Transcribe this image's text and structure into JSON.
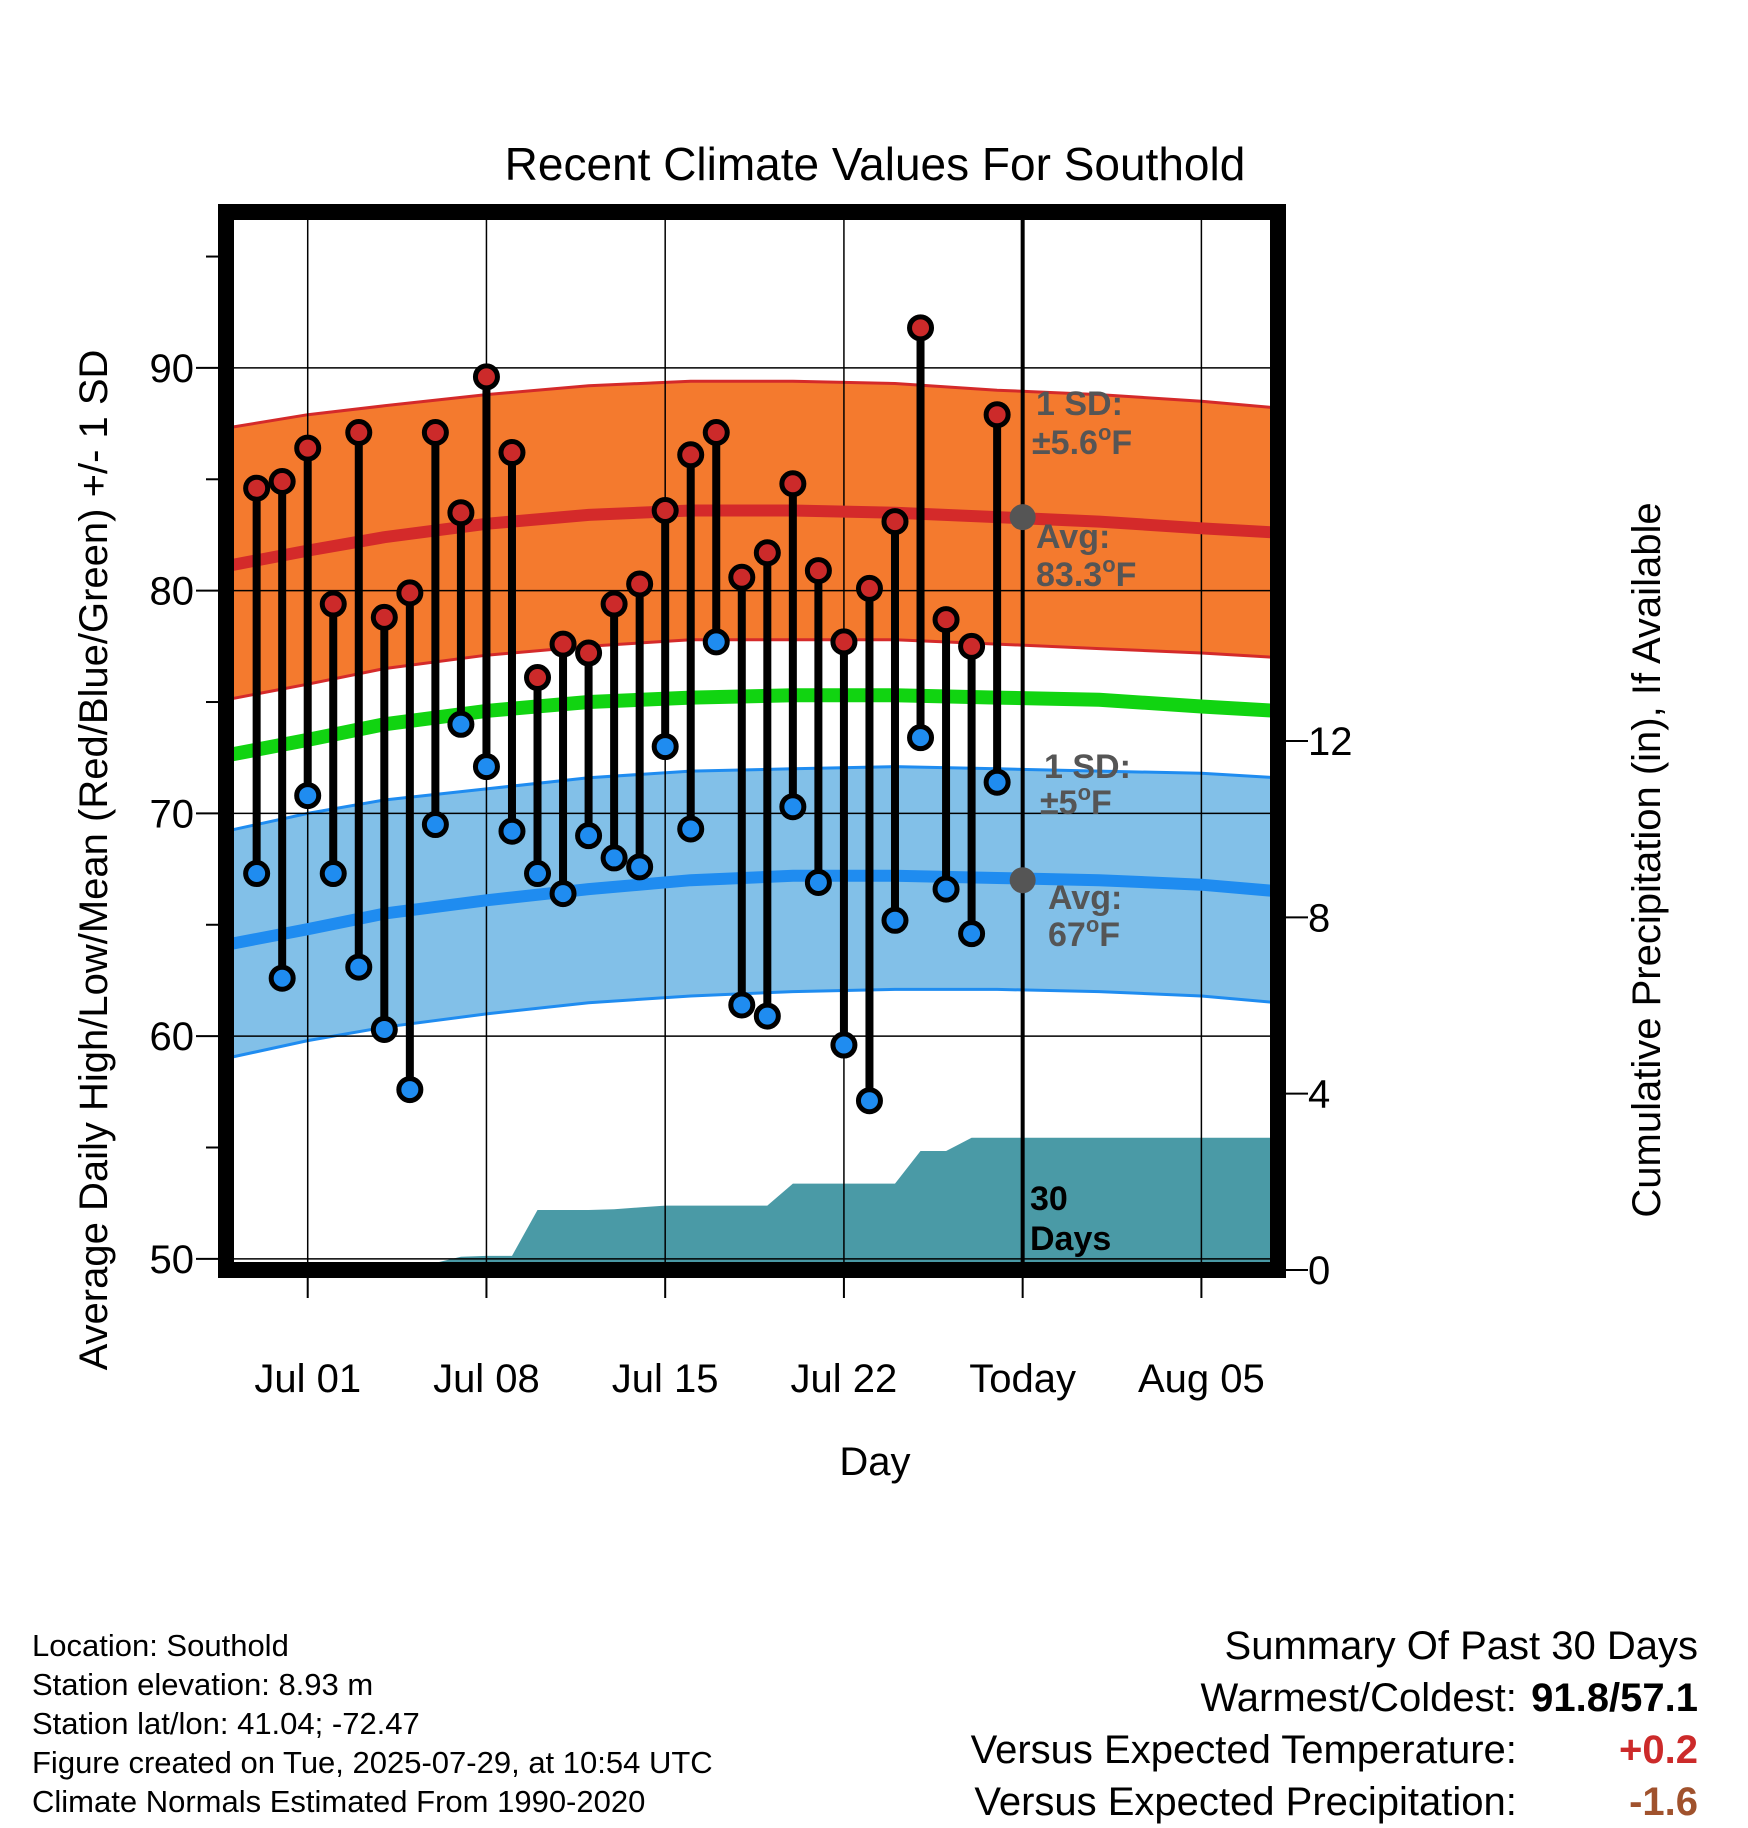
{
  "colors": {
    "high_band": "#f47a2e",
    "high_band_edge": "#d42a2a",
    "high_mean": "#d42a2a",
    "low_band": "#82c0e8",
    "low_band_edge": "#1f8cf0",
    "low_mean": "#1f8cf0",
    "daily_mean": "#11d411",
    "precip": "#4a9aa6",
    "high_dot": "#cc2a2a",
    "low_dot": "#1f8cf0",
    "today_dot": "#555555",
    "annotation": "#555555",
    "temp_anomaly": "#cc2a2a",
    "precip_anomaly": "#a0522d"
  },
  "chart_data": {
    "type": "line",
    "title": "Recent Climate Values For Southold",
    "xlabel": "Day",
    "ylabel": "Average Daily High/Low/Mean (Red/Blue/Green) +/- 1 SD",
    "y2label": "Cumulative Precipitation (in), If Available",
    "ylim": [
      49.5,
      97
    ],
    "y2lim": [
      0,
      24
    ],
    "y_ticks": [
      50,
      60,
      70,
      80,
      90
    ],
    "y2_ticks": [
      0,
      4,
      8,
      12
    ],
    "x_tick_days": [
      1,
      8,
      15,
      22,
      29,
      36
    ],
    "x_tick_labels": [
      "Jul 01",
      "Jul 08",
      "Jul 15",
      "Jul 22",
      "Today",
      "Aug 05"
    ],
    "xlim": [
      -2.2,
      39
    ],
    "today_day": 29,
    "grid": true,
    "normal_high": {
      "days": [
        -2.2,
        1,
        4,
        8,
        12,
        16,
        20,
        24,
        28,
        32,
        36,
        39
      ],
      "mean": [
        81.1,
        81.8,
        82.4,
        83.0,
        83.4,
        83.6,
        83.6,
        83.5,
        83.3,
        83.1,
        82.8,
        82.6
      ],
      "upper": [
        87.3,
        87.9,
        88.3,
        88.8,
        89.2,
        89.4,
        89.4,
        89.3,
        89.0,
        88.8,
        88.5,
        88.2
      ],
      "lower": [
        75.1,
        75.8,
        76.5,
        77.1,
        77.5,
        77.8,
        77.8,
        77.8,
        77.6,
        77.4,
        77.2,
        77.0
      ]
    },
    "normal_low": {
      "days": [
        -2.2,
        1,
        4,
        8,
        12,
        16,
        20,
        24,
        28,
        32,
        36,
        39
      ],
      "mean": [
        64.1,
        64.8,
        65.5,
        66.1,
        66.6,
        67.0,
        67.2,
        67.2,
        67.1,
        67.0,
        66.8,
        66.5
      ],
      "upper": [
        69.2,
        70.0,
        70.6,
        71.1,
        71.6,
        71.9,
        72.0,
        72.1,
        72.0,
        71.9,
        71.8,
        71.6
      ],
      "lower": [
        59.0,
        59.8,
        60.4,
        61.0,
        61.5,
        61.8,
        62.0,
        62.1,
        62.1,
        62.0,
        61.8,
        61.5
      ]
    },
    "normal_mean": {
      "days": [
        -2.2,
        1,
        4,
        8,
        12,
        16,
        20,
        24,
        28,
        32,
        36,
        39
      ],
      "values": [
        72.6,
        73.3,
        74.0,
        74.6,
        75.0,
        75.2,
        75.3,
        75.3,
        75.2,
        75.1,
        74.8,
        74.6
      ]
    },
    "series": [
      {
        "name": "Daily High",
        "days": [
          -1,
          0,
          1,
          2,
          3,
          4,
          5,
          6,
          7,
          8,
          9,
          10,
          11,
          12,
          13,
          14,
          15,
          16,
          17,
          18,
          19,
          20,
          21,
          22,
          23,
          24,
          25,
          26,
          27,
          28
        ],
        "values": [
          84.6,
          84.9,
          86.4,
          79.4,
          87.1,
          78.8,
          79.9,
          87.1,
          83.5,
          89.6,
          86.2,
          76.1,
          77.6,
          77.2,
          79.4,
          80.3,
          83.6,
          86.1,
          87.1,
          80.6,
          81.7,
          84.8,
          80.9,
          77.7,
          80.1,
          83.1,
          91.8,
          78.7,
          77.5,
          87.9
        ]
      },
      {
        "name": "Daily Low",
        "days": [
          -1,
          0,
          1,
          2,
          3,
          4,
          5,
          6,
          7,
          8,
          9,
          10,
          11,
          12,
          13,
          14,
          15,
          16,
          17,
          18,
          19,
          20,
          21,
          22,
          23,
          24,
          25,
          26,
          27,
          28
        ],
        "values": [
          67.3,
          62.6,
          70.8,
          67.3,
          63.1,
          60.3,
          57.6,
          69.5,
          74.0,
          72.1,
          69.2,
          67.3,
          66.4,
          69.0,
          68.0,
          67.6,
          73.0,
          69.3,
          77.7,
          61.4,
          60.9,
          70.3,
          66.9,
          59.6,
          57.1,
          65.2,
          73.4,
          66.6,
          64.6,
          71.4
        ]
      }
    ],
    "precip": {
      "days": [
        -2.2,
        0,
        1,
        2,
        3,
        4,
        5,
        6,
        7,
        8,
        9,
        10,
        11,
        12,
        13,
        14,
        15,
        16,
        17,
        18,
        19,
        20,
        21,
        22,
        23,
        24,
        25,
        26,
        27,
        28,
        29,
        39
      ],
      "values": [
        0.0,
        0.0,
        0.06,
        0.1,
        0.14,
        0.16,
        0.16,
        0.16,
        0.3,
        0.32,
        0.32,
        1.36,
        1.36,
        1.36,
        1.38,
        1.42,
        1.46,
        1.46,
        1.46,
        1.46,
        1.46,
        1.96,
        1.96,
        1.96,
        1.96,
        1.96,
        2.7,
        2.7,
        3.0,
        3.0,
        3.0,
        3.0
      ]
    },
    "annotations": {
      "high_sd_label": "1 SD:",
      "high_sd_value": "±5.6",
      "high_avg_label": "Avg:",
      "high_avg_value": "83.3",
      "low_sd_label": "1 SD:",
      "low_sd_value": "±5",
      "low_avg_label": "Avg:",
      "low_avg_value": "67",
      "unit": "F",
      "degree": "o",
      "days_label_1": "30",
      "days_label_2": "Days"
    }
  },
  "footer": {
    "location": "Location: Southold",
    "elevation": "Station elevation: 8.93 m",
    "latlon": "Station lat/lon: 41.04; -72.47",
    "created": "Figure created on Tue, 2025-07-29, at 10:54 UTC",
    "normals": "Climate Normals Estimated From 1990-2020"
  },
  "summary": {
    "title": "Summary Of Past 30 Days",
    "warm_cold_label": "Warmest/Coldest:",
    "warm_cold_value": "91.8/57.1",
    "temp_label": "Versus Expected Temperature:",
    "temp_value": "+0.2",
    "precip_label": "Versus Expected Precipitation:",
    "precip_value": "-1.6"
  }
}
